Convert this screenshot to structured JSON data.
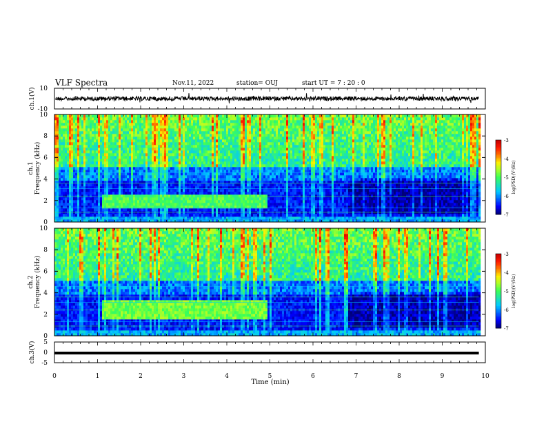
{
  "header": {
    "title": "VLF Spectra",
    "date": "Nov.11, 2022",
    "station": "station= OUJ",
    "start": "start UT =   7 : 20 : 0"
  },
  "colors": {
    "colormap": [
      "#00007a",
      "#0000ff",
      "#0066ff",
      "#00c8ff",
      "#1de3b0",
      "#3cff55",
      "#a8ff2a",
      "#ffef00",
      "#ff7a00",
      "#ff1a00",
      "#c80000",
      "#ffffff"
    ],
    "axis": "#000000"
  },
  "chart_data": [
    {
      "type": "line",
      "name": "ch1-waveform",
      "ylabel": "ch.1(V)",
      "xlim": [
        0,
        10
      ],
      "ylim": [
        -10,
        10
      ],
      "y_ticks": [
        "10",
        "-10"
      ],
      "description_values": {
        "baseline": 0,
        "amplitude_typical": 1.5
      }
    },
    {
      "type": "heatmap",
      "name": "ch1-spectrogram",
      "ylabel": "ch.1",
      "ylabel2": "Frequency (kHz)",
      "xlim": [
        0,
        10
      ],
      "ylim": [
        0,
        10
      ],
      "y_ticks": [
        "0",
        "2",
        "4",
        "6",
        "8",
        "10"
      ],
      "data_end_min": 9.85,
      "colorbar": {
        "label": "log(PSD)(V²/Hz)",
        "ticks": [
          "-3",
          "-4",
          "-5",
          "-6",
          "-7"
        ],
        "range": [
          -7,
          -3
        ]
      }
    },
    {
      "type": "heatmap",
      "name": "ch2-spectrogram",
      "ylabel": "ch.2",
      "ylabel2": "Frequency (kHz)",
      "xlim": [
        0,
        10
      ],
      "ylim": [
        0,
        10
      ],
      "y_ticks": [
        "0",
        "2",
        "4",
        "6",
        "8",
        "10"
      ],
      "data_end_min": 9.85,
      "colorbar": {
        "label": "log(PSD)(V²/Hz)",
        "ticks": [
          "-3",
          "-4",
          "-5",
          "-6",
          "-7"
        ],
        "range": [
          -7,
          -3
        ]
      }
    },
    {
      "type": "line",
      "name": "ch3-waveform",
      "ylabel": "ch.3(V)",
      "xlim": [
        0,
        10
      ],
      "ylim": [
        -5,
        5
      ],
      "y_ticks": [
        "5",
        "0",
        "-5"
      ],
      "values": {
        "constant": -0.5
      }
    }
  ],
  "x_axis": {
    "label": "Time (min)",
    "ticks": [
      "0",
      "1",
      "2",
      "3",
      "4",
      "5",
      "6",
      "7",
      "8",
      "9",
      "10"
    ]
  }
}
